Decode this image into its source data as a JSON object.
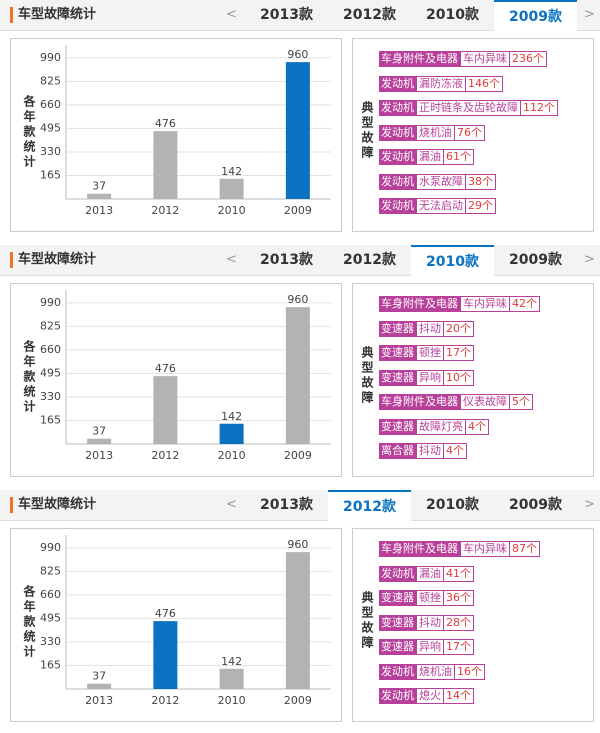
{
  "panels": [
    {
      "title": "车型故障统计",
      "tabs": [
        "2013款",
        "2012款",
        "2010款",
        "2009款"
      ],
      "active_tab": 3,
      "chart_data": {
        "type": "bar",
        "y_label": "各年款统计",
        "categories": [
          "2013",
          "2012",
          "2010",
          "2009"
        ],
        "values": [
          37,
          476,
          142,
          960
        ],
        "colors": [
          "#b3b3b3",
          "#b3b3b3",
          "#b3b3b3",
          "#0b72c2"
        ],
        "ylim": [
          0,
          1080
        ],
        "yticks": [
          165,
          330,
          495,
          660,
          825,
          990
        ],
        "grid": true
      },
      "faults": {
        "label": "典型故障",
        "items": [
          {
            "part": "车身附件及电器",
            "problem": "车内异味",
            "count": "236个"
          },
          {
            "part": "发动机",
            "problem": "漏防冻液",
            "count": "146个"
          },
          {
            "part": "发动机",
            "problem": "正时链条及齿轮故障",
            "count": "112个"
          },
          {
            "part": "发动机",
            "problem": "烧机油",
            "count": "76个"
          },
          {
            "part": "发动机",
            "problem": "漏油",
            "count": "61个"
          },
          {
            "part": "发动机",
            "problem": "水泵故障",
            "count": "38个"
          },
          {
            "part": "发动机",
            "problem": "无法启动",
            "count": "29个"
          }
        ]
      }
    },
    {
      "title": "车型故障统计",
      "tabs": [
        "2013款",
        "2012款",
        "2010款",
        "2009款"
      ],
      "active_tab": 2,
      "chart_data": {
        "type": "bar",
        "y_label": "各年款统计",
        "categories": [
          "2013",
          "2012",
          "2010",
          "2009"
        ],
        "values": [
          37,
          476,
          142,
          960
        ],
        "colors": [
          "#b3b3b3",
          "#b3b3b3",
          "#0b72c2",
          "#b3b3b3"
        ],
        "ylim": [
          0,
          1080
        ],
        "yticks": [
          165,
          330,
          495,
          660,
          825,
          990
        ],
        "grid": true
      },
      "faults": {
        "label": "典型故障",
        "items": [
          {
            "part": "车身附件及电器",
            "problem": "车内异味",
            "count": "42个"
          },
          {
            "part": "变速器",
            "problem": "抖动",
            "count": "20个"
          },
          {
            "part": "变速器",
            "problem": "顿挫",
            "count": "17个"
          },
          {
            "part": "变速器",
            "problem": "异响",
            "count": "10个"
          },
          {
            "part": "车身附件及电器",
            "problem": "仪表故障",
            "count": "5个"
          },
          {
            "part": "变速器",
            "problem": "故障灯亮",
            "count": "4个"
          },
          {
            "part": "离合器",
            "problem": "抖动",
            "count": "4个"
          }
        ]
      }
    },
    {
      "title": "车型故障统计",
      "tabs": [
        "2013款",
        "2012款",
        "2010款",
        "2009款"
      ],
      "active_tab": 1,
      "chart_data": {
        "type": "bar",
        "y_label": "各年款统计",
        "categories": [
          "2013",
          "2012",
          "2010",
          "2009"
        ],
        "values": [
          37,
          476,
          142,
          960
        ],
        "colors": [
          "#b3b3b3",
          "#0b72c2",
          "#b3b3b3",
          "#b3b3b3"
        ],
        "ylim": [
          0,
          1080
        ],
        "yticks": [
          165,
          330,
          495,
          660,
          825,
          990
        ],
        "grid": true
      },
      "faults": {
        "label": "典型故障",
        "items": [
          {
            "part": "车身附件及电器",
            "problem": "车内异味",
            "count": "87个"
          },
          {
            "part": "发动机",
            "problem": "漏油",
            "count": "41个"
          },
          {
            "part": "变速器",
            "problem": "顿挫",
            "count": "36个"
          },
          {
            "part": "变速器",
            "problem": "抖动",
            "count": "28个"
          },
          {
            "part": "变速器",
            "problem": "异响",
            "count": "17个"
          },
          {
            "part": "发动机",
            "problem": "烧机油",
            "count": "16个"
          },
          {
            "part": "发动机",
            "problem": "熄火",
            "count": "14个"
          }
        ]
      }
    }
  ]
}
